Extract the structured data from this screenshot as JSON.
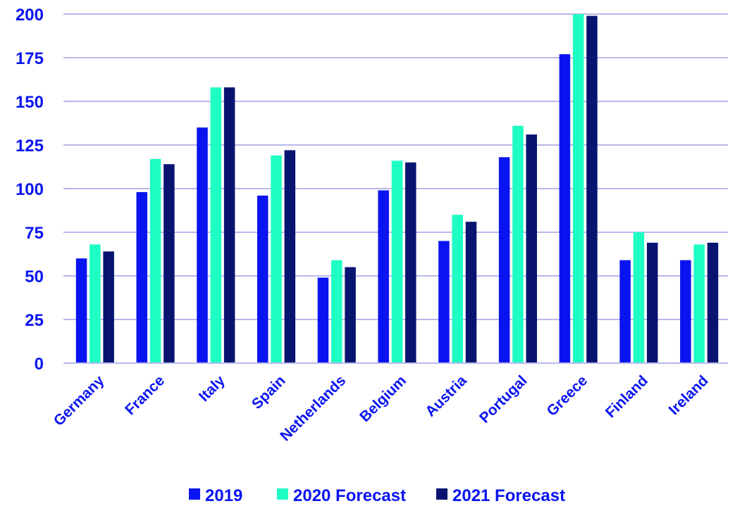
{
  "chart_data": {
    "type": "bar",
    "title": "",
    "xlabel": "",
    "ylabel": "",
    "ylim": [
      0,
      200
    ],
    "yticks": [
      0,
      25,
      50,
      75,
      100,
      125,
      150,
      175,
      200
    ],
    "grid": true,
    "legend_position": "bottom",
    "categories": [
      "Germany",
      "France",
      "Italy",
      "Spain",
      "Netherlands",
      "Belgium",
      "Austria",
      "Portugal",
      "Greece",
      "Finland",
      "Ireland"
    ],
    "series": [
      {
        "name": "2019",
        "color": "#0a14f0",
        "values": [
          60,
          98,
          135,
          96,
          49,
          99,
          70,
          118,
          177,
          59,
          59
        ]
      },
      {
        "name": "2020 Forecast",
        "color": "#1effc4",
        "values": [
          68,
          117,
          158,
          119,
          59,
          116,
          85,
          136,
          200,
          75,
          68
        ]
      },
      {
        "name": "2021 Forecast",
        "color": "#081470",
        "values": [
          64,
          114,
          158,
          122,
          55,
          115,
          81,
          131,
          199,
          69,
          69
        ]
      }
    ],
    "colors": {
      "tick_text": "#0a14f0",
      "grid": "#b8b8ec"
    }
  }
}
